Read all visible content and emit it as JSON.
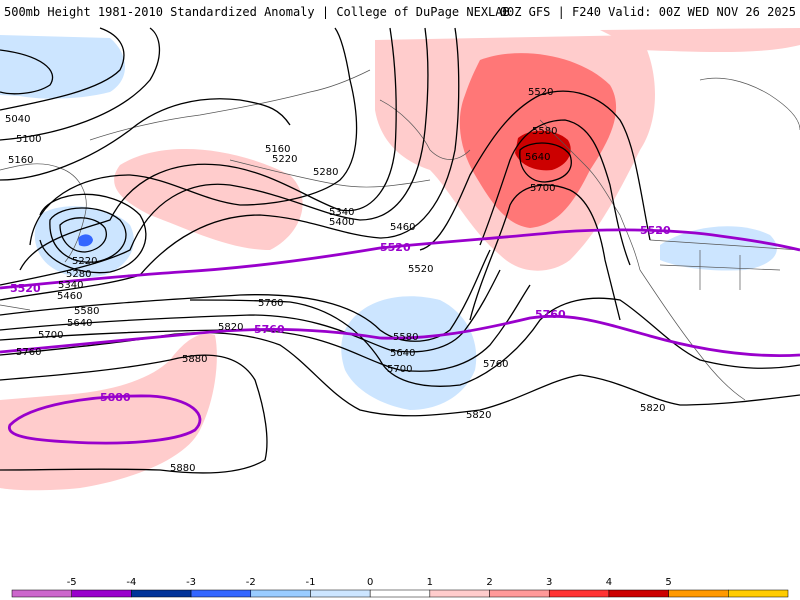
{
  "header": {
    "title_left": "500mb Height 1981-2010 Standardized Anomaly | College of DuPage NEXLAB",
    "title_right": "00Z GFS | F240 Valid: 00Z WED NOV 26 2025"
  },
  "contour_labels": {
    "c5040": "5040",
    "c5100": "5100",
    "c5160_w": "5160",
    "c5160": "5160",
    "c5220_n": "5220",
    "c5280": "5280",
    "c5340": "5340",
    "c5400": "5400",
    "c5460": "5460",
    "c5520_c": "5520",
    "c5520_ne": "5520",
    "c5580_ne": "5580",
    "c5640_ne": "5640",
    "c5700_ne": "5700",
    "c5220_w": "5220",
    "c5280_w": "5280",
    "c5340_w": "5340",
    "c5460_w": "5460",
    "c5580_w": "5580",
    "c5640_w": "5640",
    "c5700_w": "5700",
    "c5760_w": "5760",
    "c5760_c": "5760",
    "c5820_w": "5820",
    "c5880_w": "5880",
    "c5580_c": "5580",
    "c5640_c": "5640",
    "c5700_c": "5700",
    "c5760_c2": "5760",
    "c5820_c": "5820",
    "c5820_e": "5820",
    "c5880_s": "5880"
  },
  "purple_labels": {
    "p5520_w": "5520",
    "p5520_c": "5520",
    "p5520_e": "5520",
    "p5760_c": "5760",
    "p5760_e": "5760",
    "p5880": "5880"
  },
  "legend": {
    "ticks": [
      "-5",
      "-4",
      "-3",
      "-2",
      "-1",
      "0",
      "1",
      "2",
      "3",
      "4",
      "5"
    ],
    "colors": [
      "#cc66cc",
      "#9900cc",
      "#003399",
      "#3366ff",
      "#99ccff",
      "#cce5ff",
      "#ffffff",
      "#ffcccc",
      "#ff9999",
      "#ff3333",
      "#cc0000",
      "#ff9900",
      "#ffcc00"
    ]
  },
  "colors": {
    "contour": "#000000",
    "purple_contour": "#9900cc",
    "anom_pos1": "#ffcccc",
    "anom_pos2": "#ff7777",
    "anom_pos3": "#cc0000",
    "anom_neg1": "#cce5ff",
    "anom_neg2": "#3366ff"
  }
}
